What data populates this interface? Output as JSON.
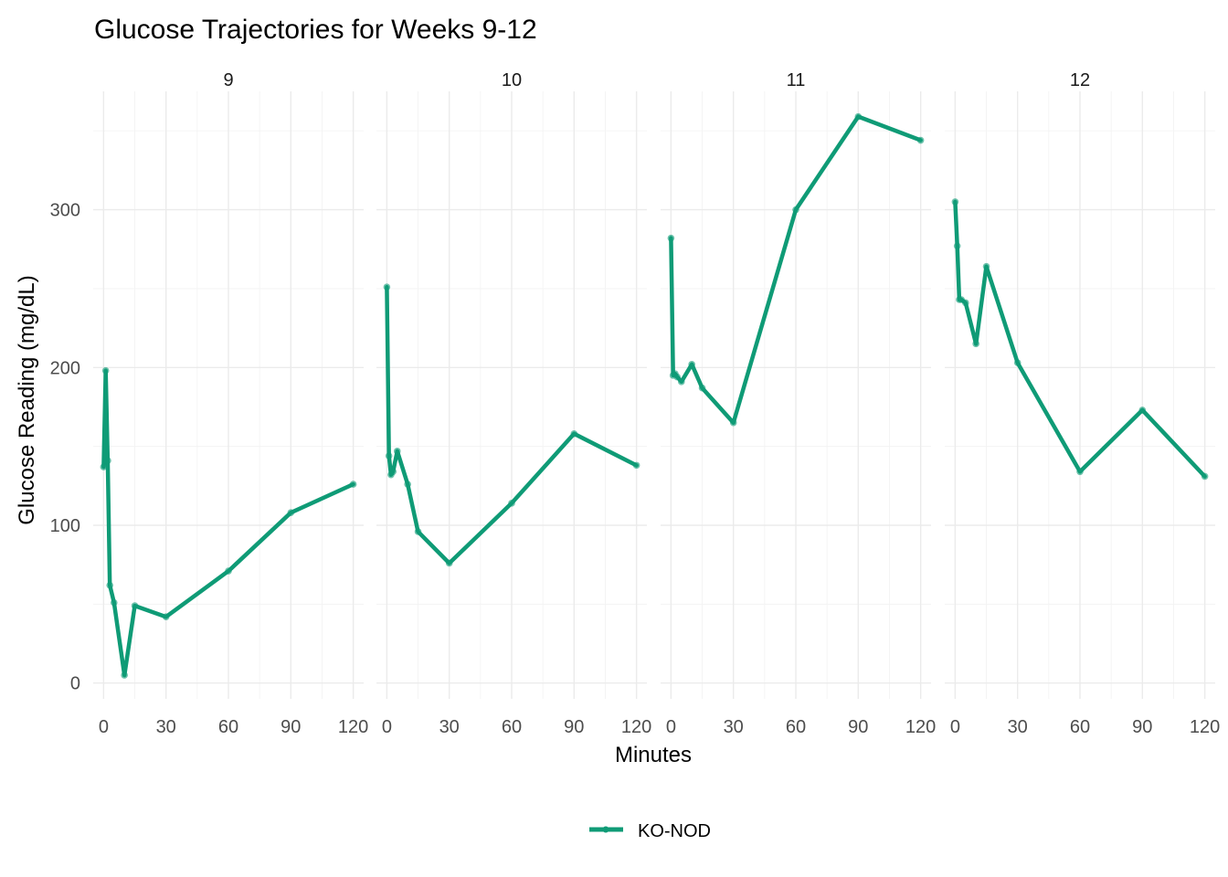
{
  "chart_data": {
    "type": "line",
    "title": "Glucose Trajectories for Weeks 9-12",
    "xlabel": "Minutes",
    "ylabel": "Glucose Reading (mg/dL)",
    "xlim": [
      -5,
      125
    ],
    "ylim": [
      -10,
      375
    ],
    "x_ticks": [
      0,
      30,
      60,
      90,
      120
    ],
    "y_ticks": [
      0,
      100,
      200,
      300
    ],
    "grid": true,
    "legend_position": "bottom",
    "legend": [
      {
        "name": "KO-NOD",
        "color": "#0f9b76"
      }
    ],
    "facets": [
      {
        "label": "9",
        "series": [
          {
            "name": "KO-NOD",
            "x": [
              0,
              1,
              2,
              3,
              5,
              10,
              15,
              30,
              60,
              90,
              120
            ],
            "y": [
              137,
              198,
              141,
              62,
              51,
              5,
              49,
              42,
              71,
              108,
              126
            ]
          }
        ]
      },
      {
        "label": "10",
        "series": [
          {
            "name": "KO-NOD",
            "x": [
              0,
              1,
              2,
              3,
              5,
              10,
              15,
              30,
              60,
              90,
              120
            ],
            "y": [
              251,
              144,
              132,
              134,
              147,
              126,
              96,
              76,
              114,
              158,
              138
            ]
          }
        ]
      },
      {
        "label": "11",
        "series": [
          {
            "name": "KO-NOD",
            "x": [
              0,
              1,
              2,
              3,
              5,
              10,
              15,
              30,
              60,
              90,
              120
            ],
            "y": [
              282,
              195,
              196,
              194,
              191,
              202,
              187,
              165,
              300,
              359,
              344
            ]
          }
        ]
      },
      {
        "label": "12",
        "series": [
          {
            "name": "KO-NOD",
            "x": [
              0,
              1,
              2,
              3,
              5,
              10,
              15,
              30,
              60,
              90,
              120
            ],
            "y": [
              305,
              277,
              243,
              243,
              241,
              215,
              264,
              203,
              134,
              173,
              131
            ]
          }
        ]
      }
    ]
  }
}
